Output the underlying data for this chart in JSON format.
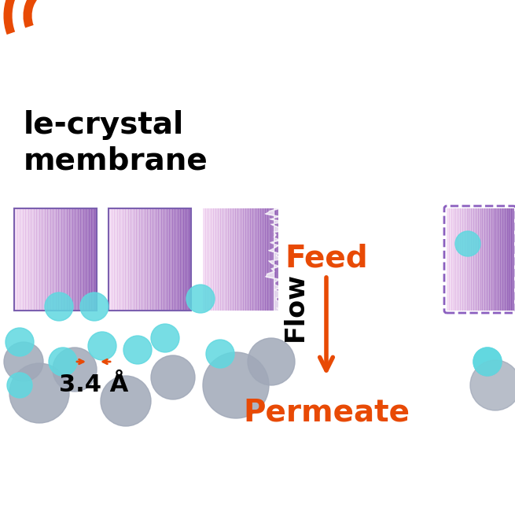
{
  "bg_color": "#ffffff",
  "orange_color": "#E84A05",
  "purple_color": "#9B7BBF",
  "purple_light": "#C8A8E0",
  "teal_color": "#5FD8E0",
  "gray_color": "#A0A8B8",
  "dashed_purple": "#8B5FBF",
  "title_text1": "le-crystal",
  "title_text2": "membrane",
  "feed_text": "Feed",
  "flow_text": "Flow",
  "permeate_text": "Permeate",
  "size_label": "3.4 Å",
  "fig_width": 6.55,
  "fig_height": 6.55
}
